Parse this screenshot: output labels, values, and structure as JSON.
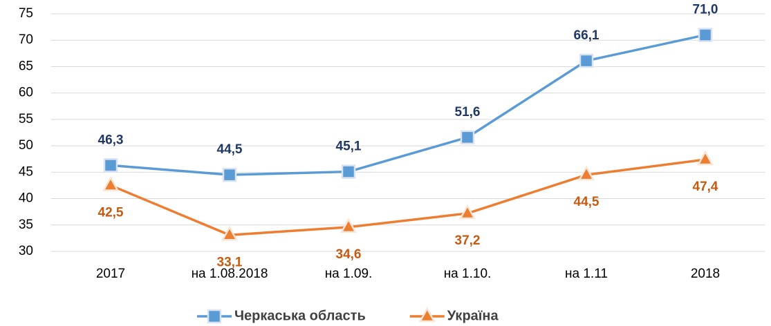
{
  "chart_data": {
    "type": "line",
    "categories": [
      "2017",
      "на 1.08.2018",
      "на 1.09.",
      "на 1.10.",
      "на 1.11",
      "2018"
    ],
    "series": [
      {
        "name": "Черкаська область",
        "color": "#5b9bd5",
        "label_color": "#1f3864",
        "marker": "square",
        "values": [
          46.3,
          44.5,
          45.1,
          51.6,
          66.1,
          71.0
        ],
        "value_labels": [
          "46,3",
          "44,5",
          "45,1",
          "51,6",
          "66,1",
          "71,0"
        ]
      },
      {
        "name": "Україна",
        "color": "#ed7d31",
        "label_color": "#c55a11",
        "marker": "triangle",
        "values": [
          42.5,
          33.1,
          34.6,
          37.2,
          44.5,
          47.4
        ],
        "value_labels": [
          "42,5",
          "33,1",
          "34,6",
          "37,2",
          "44,5",
          "47,4"
        ]
      }
    ],
    "ylim": [
      30,
      75
    ],
    "yticks": [
      30,
      35,
      40,
      45,
      50,
      55,
      60,
      65,
      70,
      75
    ],
    "grid": true,
    "legend": "bottom"
  }
}
